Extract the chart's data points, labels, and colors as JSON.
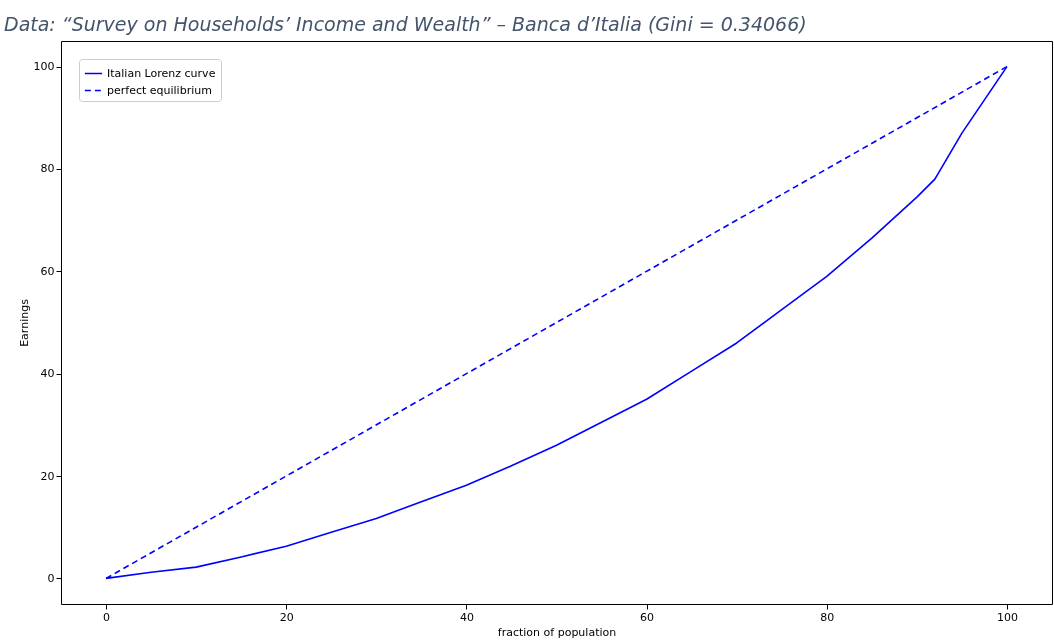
{
  "chart_data": {
    "type": "line",
    "title": "Data: “Survey on Households’ Income and Wealth” – Banca d’Italia (Gini = 0.34066)",
    "xlabel": "fraction of population",
    "ylabel": "Earnings",
    "series": [
      {
        "name": "Italian Lorenz curve",
        "color": "#0000ff",
        "line_style": "solid",
        "x": [
          0,
          5,
          10,
          15,
          20,
          25,
          30,
          35,
          40,
          45,
          50,
          55,
          60,
          65,
          70,
          75,
          80,
          85,
          90,
          92,
          95,
          100
        ],
        "values": [
          0,
          1.2,
          2.2,
          4.2,
          6.3,
          9,
          11.7,
          15,
          18.2,
          22,
          26,
          30.5,
          35,
          40.5,
          46,
          52.5,
          59,
          66.5,
          74.5,
          78,
          87,
          100
        ]
      },
      {
        "name": "perfect equilibrium",
        "color": "#0000ff",
        "line_style": "dashed",
        "x": [
          0,
          100
        ],
        "values": [
          0,
          100
        ]
      }
    ],
    "xlim": [
      -5,
      105
    ],
    "ylim": [
      -5,
      105
    ],
    "xticks": [
      0,
      20,
      40,
      60,
      80,
      100
    ],
    "yticks": [
      0,
      20,
      40,
      60,
      80,
      100
    ],
    "legend": "top left",
    "grid": false,
    "marker": "none"
  }
}
